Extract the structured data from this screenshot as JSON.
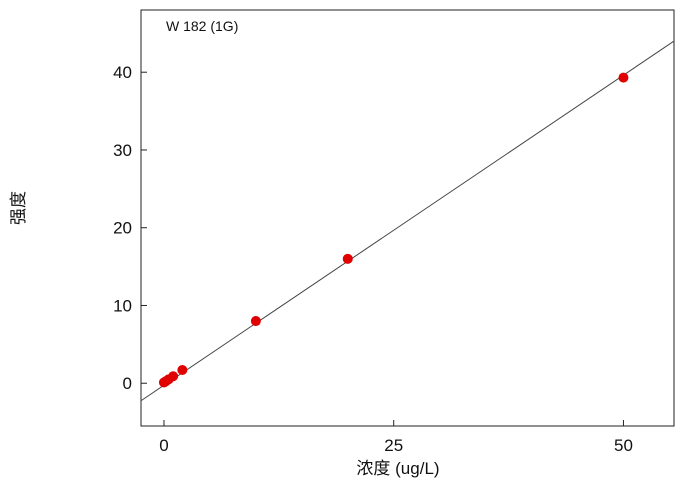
{
  "chart_data": {
    "type": "scatter",
    "title": "W 182 (1G)",
    "xlabel": "浓度 (ug/L)",
    "ylabel": "强度",
    "xlim": [
      -2.5,
      55.5
    ],
    "ylim": [
      -5.5,
      48
    ],
    "xticks": [
      0,
      25,
      50
    ],
    "yticks": [
      0,
      10,
      20,
      30,
      40
    ],
    "grid": false,
    "series": [
      {
        "type": "scatter",
        "color": "#e00000",
        "x": [
          0,
          0.2,
          0.5,
          1,
          2,
          10,
          20,
          50
        ],
        "y": [
          0.1,
          0.25,
          0.5,
          0.9,
          1.7,
          8.0,
          16.0,
          39.3
        ]
      },
      {
        "type": "line",
        "color": "#444444",
        "x": [
          -2.5,
          55.5
        ],
        "y": [
          -2.25,
          44.0
        ]
      }
    ]
  }
}
